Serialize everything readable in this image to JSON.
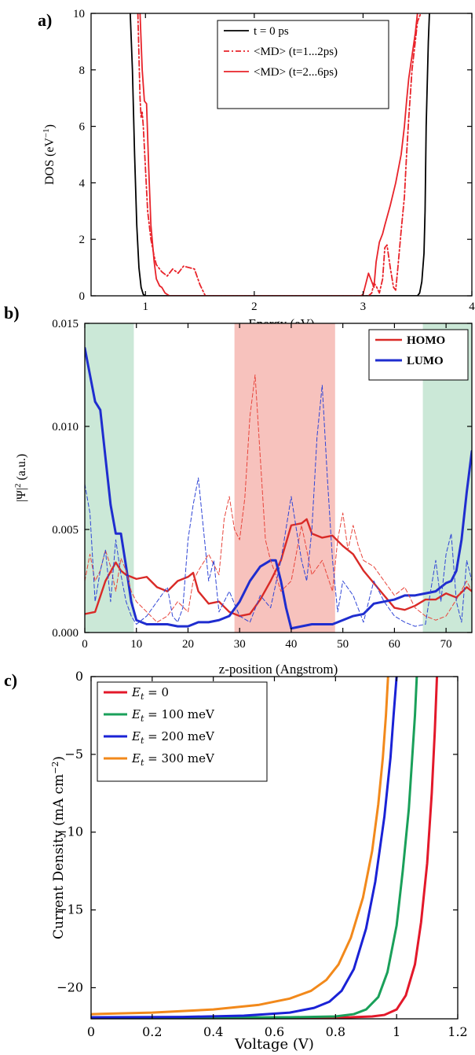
{
  "chart_data": [
    {
      "panel_label": "a)",
      "type": "line",
      "xlabel": "Energy (eV)",
      "ylabel": "DOS (eV",
      "ylabel_sup": "−1",
      "ylabel_end": ")",
      "xlim": [
        0.5,
        4
      ],
      "ylim": [
        0,
        10
      ],
      "xticks": [
        "1",
        "2",
        "3",
        "4"
      ],
      "yticks": [
        "0",
        "2",
        "4",
        "6",
        "8",
        "10"
      ],
      "legend": "top-right",
      "series": [
        {
          "name": "t = 0 ps",
          "color": "#000000",
          "dash": "solid",
          "x": [
            0.86,
            0.88,
            0.9,
            0.92,
            0.94,
            0.96,
            0.98,
            1.0,
            3.5,
            3.52,
            3.54,
            3.56,
            3.57,
            3.58,
            3.6,
            3.61
          ],
          "y": [
            10,
            8,
            5,
            2.5,
            1.0,
            0.3,
            0.05,
            0,
            0,
            0.1,
            0.5,
            1.5,
            3,
            6,
            9,
            10
          ]
        },
        {
          "name": "<MD> (t=1...2ps)",
          "color": "#e8232a",
          "dash": "7,3,2,3",
          "x": [
            0.93,
            0.95,
            0.96,
            0.97,
            0.98,
            1.0,
            1.02,
            1.05,
            1.08,
            1.1,
            1.12,
            1.15,
            1.2,
            1.25,
            1.3,
            1.35,
            1.4,
            1.45,
            1.5,
            1.55,
            3.05,
            3.08,
            3.1,
            3.12,
            3.15,
            3.18,
            3.2,
            3.22,
            3.25,
            3.28,
            3.3,
            3.32,
            3.35,
            3.38,
            3.4,
            3.42,
            3.45,
            3.48,
            3.5,
            3.53
          ],
          "y": [
            10,
            7,
            6.3,
            6.5,
            6.0,
            4.5,
            3.0,
            2.0,
            1.4,
            1.1,
            1.0,
            0.85,
            0.7,
            0.95,
            0.8,
            1.05,
            1.0,
            0.95,
            0.4,
            0,
            0,
            0.1,
            0.45,
            0.35,
            0.1,
            0.6,
            1.7,
            1.8,
            1.0,
            0.3,
            0.2,
            1.0,
            2.3,
            3.5,
            5.0,
            6.3,
            8.0,
            9.0,
            9.7,
            10
          ]
        },
        {
          "name": "<MD> (t=2...6ps)",
          "color": "#e8232a",
          "dash": "solid",
          "x": [
            0.95,
            0.97,
            0.99,
            1.01,
            1.03,
            1.05,
            1.08,
            1.1,
            1.13,
            1.15,
            1.18,
            1.2,
            1.22,
            2.98,
            3.0,
            3.02,
            3.05,
            3.08,
            3.1,
            3.12,
            3.15,
            3.18,
            3.2,
            3.25,
            3.3,
            3.35,
            3.38,
            3.4,
            3.42,
            3.45,
            3.48,
            3.5
          ],
          "y": [
            10,
            8,
            6.9,
            6.8,
            4.5,
            2.5,
            1.2,
            0.6,
            0.35,
            0.3,
            0.1,
            0.05,
            0,
            0,
            0.05,
            0.35,
            0.8,
            0.5,
            0.3,
            1.2,
            1.9,
            2.2,
            2.5,
            3.2,
            4.0,
            5.0,
            6.0,
            6.9,
            7.7,
            8.5,
            9.3,
            10
          ]
        }
      ]
    },
    {
      "panel_label": "b)",
      "type": "line",
      "xlabel": "z-position (Angstrom)",
      "ylabel": "|Ψ|",
      "ylabel_sup": "2",
      "ylabel_end": " (a.u.)",
      "xlim": [
        0,
        75
      ],
      "ylim": [
        0,
        0.015
      ],
      "xticks": [
        "0",
        "10",
        "20",
        "30",
        "40",
        "50",
        "60",
        "70"
      ],
      "yticks": [
        "0.000",
        "0.005",
        "0.010",
        "0.015"
      ],
      "legend": "top-right",
      "shaded_regions": [
        {
          "x0": 0,
          "x1": 9.5,
          "color": "#cbe8d7"
        },
        {
          "x0": 29,
          "x1": 48.5,
          "color": "#f7c2bd"
        },
        {
          "x0": 65.5,
          "x1": 75,
          "color": "#cbe8d7"
        }
      ],
      "series": [
        {
          "name": "HOMO",
          "color": "#d92a27",
          "width": 2.4,
          "dash": "solid",
          "x": [
            0,
            2,
            4,
            6,
            7,
            8,
            10,
            12,
            14,
            16,
            18,
            20,
            21,
            22,
            24,
            26,
            28,
            30,
            32,
            34,
            36,
            38,
            40,
            42,
            43,
            44,
            46,
            48,
            50,
            52,
            54,
            56,
            58,
            60,
            62,
            64,
            66,
            68,
            70,
            72,
            74,
            75
          ],
          "y": [
            0.0009,
            0.001,
            0.0025,
            0.0034,
            0.003,
            0.0028,
            0.0026,
            0.0027,
            0.0022,
            0.002,
            0.0025,
            0.0027,
            0.0029,
            0.002,
            0.0014,
            0.0015,
            0.001,
            0.0008,
            0.0009,
            0.0016,
            0.0025,
            0.0035,
            0.0052,
            0.0053,
            0.0055,
            0.0048,
            0.0046,
            0.0047,
            0.0042,
            0.0038,
            0.003,
            0.0024,
            0.0018,
            0.0012,
            0.0011,
            0.0013,
            0.0016,
            0.0016,
            0.0019,
            0.0017,
            0.0022,
            0.002
          ]
        },
        {
          "name": "LUMO",
          "color": "#1f2dcf",
          "width": 3,
          "dash": "solid",
          "x": [
            0,
            1,
            2,
            3,
            4,
            5,
            6,
            7,
            8,
            9,
            10,
            12,
            14,
            16,
            18,
            20,
            22,
            24,
            26,
            28,
            30,
            32,
            34,
            36,
            37,
            38,
            39,
            40,
            42,
            44,
            46,
            48,
            50,
            52,
            54,
            56,
            58,
            60,
            62,
            64,
            66,
            68,
            70,
            71,
            72,
            73,
            74,
            75
          ],
          "y": [
            0.0138,
            0.0125,
            0.0112,
            0.0108,
            0.0085,
            0.0062,
            0.0048,
            0.0048,
            0.0032,
            0.0015,
            0.0006,
            0.0004,
            0.0004,
            0.0004,
            0.0003,
            0.0003,
            0.0005,
            0.0005,
            0.0006,
            0.0008,
            0.0015,
            0.0025,
            0.0032,
            0.0035,
            0.0035,
            0.0025,
            0.0012,
            0.0002,
            0.0003,
            0.0004,
            0.0004,
            0.0004,
            0.0006,
            0.0008,
            0.0009,
            0.0014,
            0.0015,
            0.0016,
            0.0018,
            0.0018,
            0.0019,
            0.002,
            0.0024,
            0.0025,
            0.003,
            0.0045,
            0.0068,
            0.0088
          ]
        },
        {
          "name": "",
          "color": "#e8453c",
          "width": 1,
          "dash": "5,3",
          "x": [
            0,
            1,
            2,
            3,
            4,
            5,
            6,
            7,
            8,
            9,
            10,
            12,
            14,
            16,
            18,
            20,
            21,
            22,
            24,
            26,
            27,
            28,
            29,
            30,
            31,
            32,
            33,
            34,
            35,
            36,
            37,
            38,
            40,
            42,
            44,
            46,
            48,
            49,
            50,
            51,
            52,
            53,
            54,
            56,
            58,
            60,
            62,
            64,
            66,
            68,
            70,
            72,
            74,
            75
          ],
          "y": [
            0.0025,
            0.0038,
            0.0025,
            0.003,
            0.004,
            0.0032,
            0.002,
            0.0036,
            0.003,
            0.002,
            0.0015,
            0.001,
            0.0005,
            0.0008,
            0.0015,
            0.001,
            0.0025,
            0.003,
            0.0038,
            0.0028,
            0.0055,
            0.0066,
            0.005,
            0.0045,
            0.0065,
            0.0105,
            0.0125,
            0.0085,
            0.0045,
            0.0035,
            0.0028,
            0.002,
            0.0025,
            0.0052,
            0.0028,
            0.0035,
            0.002,
            0.0045,
            0.0058,
            0.004,
            0.0052,
            0.0042,
            0.0035,
            0.0032,
            0.0025,
            0.0018,
            0.0022,
            0.0012,
            0.0008,
            0.0006,
            0.0008,
            0.0016,
            0.0025,
            0.002
          ]
        },
        {
          "name": "",
          "color": "#2f45d6",
          "width": 1,
          "dash": "5,3",
          "x": [
            0,
            1,
            2,
            3,
            4,
            5,
            6,
            7,
            8,
            9,
            10,
            12,
            14,
            16,
            17,
            18,
            19,
            20,
            21,
            22,
            23,
            24,
            25,
            26,
            27,
            28,
            30,
            32,
            34,
            36,
            38,
            40,
            41,
            42,
            43,
            44,
            45,
            46,
            47,
            48,
            49,
            50,
            52,
            54,
            56,
            58,
            60,
            62,
            64,
            66,
            67,
            68,
            69,
            70,
            71,
            72,
            73,
            74,
            75
          ],
          "y": [
            0.0072,
            0.0058,
            0.0015,
            0.003,
            0.004,
            0.0015,
            0.0045,
            0.0028,
            0.0015,
            0.0008,
            0.0004,
            0.0008,
            0.0015,
            0.0022,
            0.0008,
            0.0005,
            0.0012,
            0.0045,
            0.0062,
            0.0075,
            0.005,
            0.0025,
            0.0035,
            0.001,
            0.0015,
            0.002,
            0.0008,
            0.0005,
            0.0018,
            0.0012,
            0.0035,
            0.0066,
            0.005,
            0.0035,
            0.0025,
            0.005,
            0.0095,
            0.012,
            0.0075,
            0.0035,
            0.001,
            0.0025,
            0.0018,
            0.0005,
            0.0025,
            0.0015,
            0.0008,
            0.0005,
            0.0003,
            0.0004,
            0.002,
            0.0035,
            0.0015,
            0.0038,
            0.0048,
            0.0015,
            0.0005,
            0.0035,
            0.0025
          ]
        }
      ]
    },
    {
      "panel_label": "c)",
      "type": "line",
      "xlabel": "Voltage (V)",
      "ylabel": "Current Density (mA cm",
      "ylabel_sup": "−2",
      "ylabel_end": ")",
      "xlim": [
        0,
        1.2
      ],
      "ylim": [
        -22,
        0
      ],
      "xticks": [
        "0",
        "0.2",
        "0.4",
        "0.6",
        "0.8",
        "1",
        "1.2"
      ],
      "yticks": [
        "−20",
        "−15",
        "−10",
        "−5",
        "0"
      ],
      "legend": "top-left",
      "series": [
        {
          "name": "E",
          "name_sub": "t",
          "name_rest": " = 0",
          "color": "#e3182a",
          "width": 3,
          "dash": "solid",
          "x": [
            0,
            0.4,
            0.7,
            0.85,
            0.92,
            0.96,
            1.0,
            1.03,
            1.06,
            1.08,
            1.1,
            1.115,
            1.125,
            1.132
          ],
          "y": [
            -21.95,
            -21.94,
            -21.93,
            -21.9,
            -21.85,
            -21.75,
            -21.4,
            -20.5,
            -18.5,
            -15.8,
            -12,
            -7.5,
            -3.5,
            0
          ]
        },
        {
          "name": "E",
          "name_sub": "t",
          "name_rest": " = 100 meV",
          "color": "#1aa05a",
          "width": 3,
          "dash": "solid",
          "x": [
            0,
            0.4,
            0.65,
            0.8,
            0.86,
            0.9,
            0.94,
            0.97,
            1.0,
            1.02,
            1.04,
            1.05,
            1.06,
            1.066
          ],
          "y": [
            -21.93,
            -21.92,
            -21.9,
            -21.85,
            -21.7,
            -21.4,
            -20.6,
            -19.0,
            -16.0,
            -12.5,
            -8.5,
            -5.5,
            -2.5,
            0
          ]
        },
        {
          "name": "E",
          "name_sub": "t",
          "name_rest": " = 200 meV",
          "color": "#1a22d6",
          "width": 3,
          "dash": "solid",
          "x": [
            0,
            0.3,
            0.5,
            0.65,
            0.73,
            0.78,
            0.82,
            0.86,
            0.9,
            0.93,
            0.96,
            0.98,
            0.99,
            1.0
          ],
          "y": [
            -21.9,
            -21.88,
            -21.8,
            -21.6,
            -21.3,
            -20.9,
            -20.2,
            -18.8,
            -16.2,
            -13.2,
            -9.0,
            -5.2,
            -2.5,
            0
          ]
        },
        {
          "name": "E",
          "name_sub": "t",
          "name_rest": " = 300 meV",
          "color": "#f2891b",
          "width": 3,
          "dash": "solid",
          "x": [
            0,
            0.2,
            0.4,
            0.55,
            0.65,
            0.72,
            0.77,
            0.81,
            0.85,
            0.89,
            0.92,
            0.94,
            0.955,
            0.965,
            0.972
          ],
          "y": [
            -21.7,
            -21.6,
            -21.4,
            -21.1,
            -20.7,
            -20.2,
            -19.5,
            -18.5,
            -16.8,
            -14.2,
            -11.2,
            -8.2,
            -5.2,
            -2.5,
            0
          ]
        }
      ]
    }
  ]
}
